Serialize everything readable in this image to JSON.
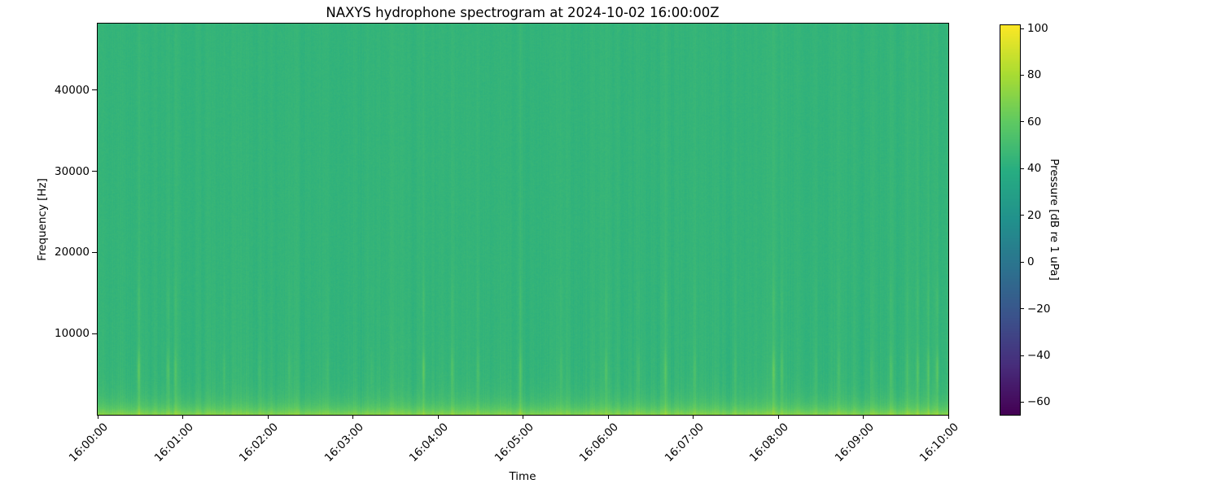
{
  "figure": {
    "background_color": "#ffffff",
    "text_color": "#000000"
  },
  "chart_data": {
    "type": "heatmap",
    "subtype": "spectrogram",
    "title": "NAXYS hydrophone spectrogram at 2024-10-02 16:00:00Z",
    "xlabel": "Time",
    "ylabel": "Frequency [Hz]",
    "time_start": "16:00:00",
    "time_end": "16:10:00",
    "y_range_hz": [
      0,
      48200
    ],
    "x_ticks": [
      {
        "t": 0.0,
        "label": "16:00:00"
      },
      {
        "t": 0.1,
        "label": "16:01:00"
      },
      {
        "t": 0.2,
        "label": "16:02:00"
      },
      {
        "t": 0.3,
        "label": "16:03:00"
      },
      {
        "t": 0.4,
        "label": "16:04:00"
      },
      {
        "t": 0.5,
        "label": "16:05:00"
      },
      {
        "t": 0.6,
        "label": "16:06:00"
      },
      {
        "t": 0.7,
        "label": "16:07:00"
      },
      {
        "t": 0.8,
        "label": "16:08:00"
      },
      {
        "t": 0.9,
        "label": "16:09:00"
      },
      {
        "t": 1.0,
        "label": "16:10:00"
      }
    ],
    "y_ticks": [
      {
        "value": 10000,
        "label": "10000"
      },
      {
        "value": 20000,
        "label": "20000"
      },
      {
        "value": 30000,
        "label": "30000"
      },
      {
        "value": 40000,
        "label": "40000"
      }
    ],
    "colormap": {
      "name": "viridis",
      "stops": [
        "#440154",
        "#472d7b",
        "#3b528b",
        "#2c728e",
        "#21918c",
        "#27ad81",
        "#5ec962",
        "#aadc32",
        "#fde725"
      ]
    },
    "colorbar": {
      "label": "Pressure [dB re 1 uPa]",
      "vmin": -65.4,
      "vmax": 101.4,
      "ticks": [
        {
          "value": 100,
          "label": "100"
        },
        {
          "value": 80,
          "label": "80"
        },
        {
          "value": 60,
          "label": "60"
        },
        {
          "value": 40,
          "label": "40"
        },
        {
          "value": 20,
          "label": "20"
        },
        {
          "value": 0,
          "label": "0"
        },
        {
          "value": -20,
          "label": "−20"
        },
        {
          "value": -40,
          "label": "−40"
        },
        {
          "value": -60,
          "label": "−60"
        }
      ]
    },
    "field": {
      "background_db": 44,
      "column_noise_db": 2.2,
      "pixel_noise_db": 1.5,
      "low_band_boost_db": 24,
      "low_band_scale_hz": 1100,
      "broad_low_boost_db": 2.2,
      "broad_low_scale_hz": 5200,
      "event_spot_hz": 5500,
      "event_spot2_hz": 14000,
      "noise_seed": 20241002,
      "events": [
        {
          "t": 0.048,
          "boost_db": 12
        },
        {
          "t": 0.082,
          "boost_db": 9
        },
        {
          "t": 0.091,
          "boost_db": 8
        },
        {
          "t": 0.148,
          "boost_db": 5
        },
        {
          "t": 0.19,
          "boost_db": 4
        },
        {
          "t": 0.225,
          "boost_db": 5
        },
        {
          "t": 0.27,
          "boost_db": 4
        },
        {
          "t": 0.322,
          "boost_db": 4
        },
        {
          "t": 0.383,
          "boost_db": 12
        },
        {
          "t": 0.417,
          "boost_db": 7
        },
        {
          "t": 0.447,
          "boost_db": 6
        },
        {
          "t": 0.497,
          "boost_db": 8
        },
        {
          "t": 0.545,
          "boost_db": 5
        },
        {
          "t": 0.598,
          "boost_db": 8
        },
        {
          "t": 0.636,
          "boost_db": 5
        },
        {
          "t": 0.668,
          "boost_db": 9
        },
        {
          "t": 0.702,
          "boost_db": 6
        },
        {
          "t": 0.75,
          "boost_db": 4
        },
        {
          "t": 0.795,
          "boost_db": 12
        },
        {
          "t": 0.805,
          "boost_db": 8
        },
        {
          "t": 0.845,
          "boost_db": 4
        },
        {
          "t": 0.872,
          "boost_db": 5
        },
        {
          "t": 0.91,
          "boost_db": 4
        },
        {
          "t": 0.933,
          "boost_db": 7
        },
        {
          "t": 0.952,
          "boost_db": 5
        },
        {
          "t": 0.965,
          "boost_db": 8
        },
        {
          "t": 0.977,
          "boost_db": 9
        },
        {
          "t": 0.988,
          "boost_db": 11
        }
      ]
    }
  }
}
